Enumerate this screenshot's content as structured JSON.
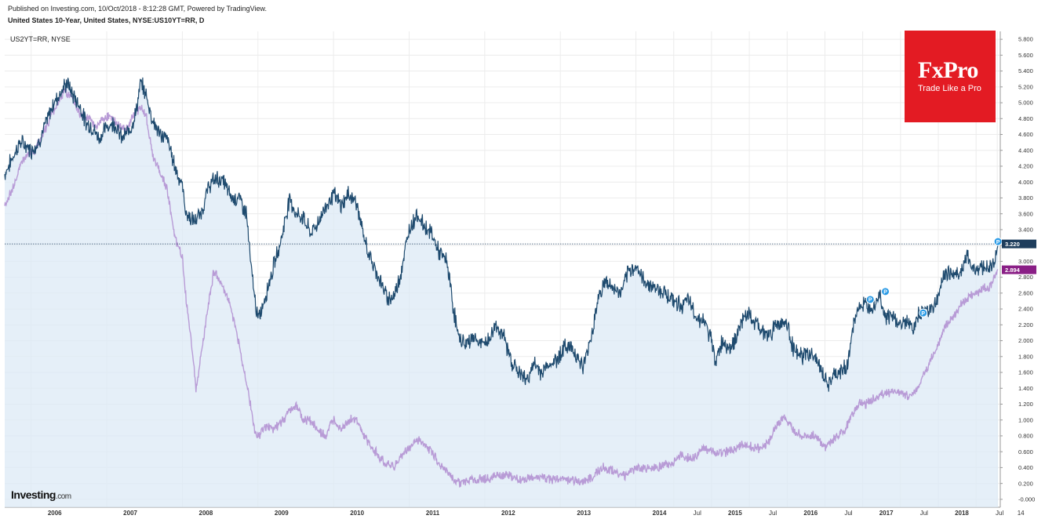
{
  "header": {
    "published": "Published on Investing.com, 10/Oct/2018 - 8:12:28 GMT, Powered by TradingView.",
    "title": "United States 10-Year, United States, NYSE:US10YT=RR, D",
    "compare_symbol": "US2YT=RR, NYSE"
  },
  "logo": {
    "brand": "Investing",
    "suffix": ".com"
  },
  "ad": {
    "brand": "FxPro",
    "tagline": "Trade Like a Pro"
  },
  "colors": {
    "us10": "#1e4a6e",
    "us2": "#b89bd6",
    "area_fill": "#dce9f6",
    "grid": "#ececec",
    "current_label_bg": "#1e3d5c",
    "us2_label_bg": "#8a1f86",
    "marker": "#2b9be6",
    "ad_bg": "#e31b23"
  },
  "chart_data": {
    "type": "line",
    "ylim": [
      -0.1,
      5.9
    ],
    "y_ticks": [
      5.8,
      5.6,
      5.4,
      5.2,
      5.0,
      4.8,
      4.6,
      4.4,
      4.2,
      4.0,
      3.8,
      3.6,
      3.4,
      3.2,
      3.0,
      2.8,
      2.6,
      2.4,
      2.2,
      2.0,
      1.8,
      1.6,
      1.4,
      1.2,
      1.0,
      0.8,
      0.6,
      0.4,
      0.2,
      0.0
    ],
    "x_ticks": [
      {
        "label": "2006",
        "t": 2006.0,
        "bold": true
      },
      {
        "label": "2007",
        "t": 2007.0,
        "bold": true
      },
      {
        "label": "2008",
        "t": 2008.0,
        "bold": true
      },
      {
        "label": "2009",
        "t": 2009.0,
        "bold": true
      },
      {
        "label": "2010",
        "t": 2010.0,
        "bold": true
      },
      {
        "label": "2011",
        "t": 2011.0,
        "bold": true
      },
      {
        "label": "2012",
        "t": 2012.0,
        "bold": true
      },
      {
        "label": "2013",
        "t": 2013.0,
        "bold": true
      },
      {
        "label": "2014",
        "t": 2014.0,
        "bold": true
      },
      {
        "label": "Jul",
        "t": 2014.5,
        "bold": false
      },
      {
        "label": "2015",
        "t": 2015.0,
        "bold": true
      },
      {
        "label": "Jul",
        "t": 2015.5,
        "bold": false
      },
      {
        "label": "2016",
        "t": 2016.0,
        "bold": true
      },
      {
        "label": "Jul",
        "t": 2016.5,
        "bold": false
      },
      {
        "label": "2017",
        "t": 2017.0,
        "bold": true
      },
      {
        "label": "Jul",
        "t": 2017.5,
        "bold": false
      },
      {
        "label": "2018",
        "t": 2018.0,
        "bold": true
      },
      {
        "label": "Jul",
        "t": 2018.5,
        "bold": false
      },
      {
        "label": "14",
        "t": 2018.78,
        "bold": false
      }
    ],
    "current_labels": [
      {
        "series": "US10YT=RR",
        "value": "3.220"
      },
      {
        "series": "US2YT=RR",
        "value": "2.894"
      }
    ],
    "series": [
      {
        "name": "US10YT=RR",
        "points": [
          [
            2005.65,
            4.1
          ],
          [
            2005.75,
            4.3
          ],
          [
            2005.85,
            4.5
          ],
          [
            2005.95,
            4.45
          ],
          [
            2006.0,
            4.4
          ],
          [
            2006.1,
            4.5
          ],
          [
            2006.2,
            4.75
          ],
          [
            2006.3,
            5.0
          ],
          [
            2006.4,
            5.15
          ],
          [
            2006.48,
            5.25
          ],
          [
            2006.55,
            5.1
          ],
          [
            2006.65,
            4.95
          ],
          [
            2006.72,
            4.75
          ],
          [
            2006.8,
            4.7
          ],
          [
            2006.9,
            4.55
          ],
          [
            2007.0,
            4.7
          ],
          [
            2007.1,
            4.75
          ],
          [
            2007.2,
            4.55
          ],
          [
            2007.3,
            4.65
          ],
          [
            2007.38,
            4.85
          ],
          [
            2007.45,
            5.25
          ],
          [
            2007.52,
            5.1
          ],
          [
            2007.6,
            4.8
          ],
          [
            2007.7,
            4.6
          ],
          [
            2007.8,
            4.55
          ],
          [
            2007.9,
            4.2
          ],
          [
            2008.0,
            3.95
          ],
          [
            2008.05,
            3.6
          ],
          [
            2008.15,
            3.5
          ],
          [
            2008.25,
            3.6
          ],
          [
            2008.35,
            3.95
          ],
          [
            2008.45,
            4.05
          ],
          [
            2008.55,
            4.0
          ],
          [
            2008.65,
            3.8
          ],
          [
            2008.75,
            3.8
          ],
          [
            2008.85,
            3.6
          ],
          [
            2008.9,
            3.0
          ],
          [
            2008.95,
            2.6
          ],
          [
            2009.0,
            2.25
          ],
          [
            2009.08,
            2.5
          ],
          [
            2009.18,
            2.85
          ],
          [
            2009.3,
            3.25
          ],
          [
            2009.42,
            3.8
          ],
          [
            2009.5,
            3.6
          ],
          [
            2009.6,
            3.55
          ],
          [
            2009.7,
            3.35
          ],
          [
            2009.8,
            3.5
          ],
          [
            2009.9,
            3.7
          ],
          [
            2010.0,
            3.85
          ],
          [
            2010.1,
            3.7
          ],
          [
            2010.2,
            3.85
          ],
          [
            2010.3,
            3.75
          ],
          [
            2010.4,
            3.3
          ],
          [
            2010.5,
            3.0
          ],
          [
            2010.6,
            2.8
          ],
          [
            2010.7,
            2.55
          ],
          [
            2010.8,
            2.55
          ],
          [
            2010.9,
            2.9
          ],
          [
            2011.0,
            3.4
          ],
          [
            2011.1,
            3.6
          ],
          [
            2011.2,
            3.45
          ],
          [
            2011.3,
            3.35
          ],
          [
            2011.4,
            3.1
          ],
          [
            2011.5,
            3.0
          ],
          [
            2011.58,
            2.45
          ],
          [
            2011.65,
            2.05
          ],
          [
            2011.75,
            1.95
          ],
          [
            2011.85,
            2.05
          ],
          [
            2011.95,
            1.95
          ],
          [
            2012.05,
            2.0
          ],
          [
            2012.15,
            2.2
          ],
          [
            2012.25,
            2.05
          ],
          [
            2012.35,
            1.75
          ],
          [
            2012.45,
            1.6
          ],
          [
            2012.55,
            1.5
          ],
          [
            2012.65,
            1.7
          ],
          [
            2012.75,
            1.6
          ],
          [
            2012.85,
            1.7
          ],
          [
            2012.95,
            1.75
          ],
          [
            2013.0,
            1.85
          ],
          [
            2013.1,
            1.95
          ],
          [
            2013.2,
            1.85
          ],
          [
            2013.3,
            1.65
          ],
          [
            2013.42,
            2.1
          ],
          [
            2013.5,
            2.55
          ],
          [
            2013.6,
            2.75
          ],
          [
            2013.7,
            2.65
          ],
          [
            2013.8,
            2.6
          ],
          [
            2013.9,
            2.85
          ],
          [
            2014.0,
            2.95
          ],
          [
            2014.1,
            2.75
          ],
          [
            2014.2,
            2.7
          ],
          [
            2014.3,
            2.65
          ],
          [
            2014.4,
            2.6
          ],
          [
            2014.5,
            2.5
          ],
          [
            2014.6,
            2.45
          ],
          [
            2014.7,
            2.5
          ],
          [
            2014.8,
            2.3
          ],
          [
            2014.9,
            2.25
          ],
          [
            2015.0,
            2.0
          ],
          [
            2015.05,
            1.75
          ],
          [
            2015.15,
            2.0
          ],
          [
            2015.25,
            1.9
          ],
          [
            2015.35,
            2.1
          ],
          [
            2015.45,
            2.35
          ],
          [
            2015.55,
            2.25
          ],
          [
            2015.65,
            2.15
          ],
          [
            2015.75,
            2.05
          ],
          [
            2015.85,
            2.2
          ],
          [
            2015.95,
            2.25
          ],
          [
            2016.0,
            2.2
          ],
          [
            2016.1,
            1.85
          ],
          [
            2016.2,
            1.8
          ],
          [
            2016.3,
            1.85
          ],
          [
            2016.4,
            1.75
          ],
          [
            2016.48,
            1.55
          ],
          [
            2016.55,
            1.45
          ],
          [
            2016.62,
            1.55
          ],
          [
            2016.7,
            1.6
          ],
          [
            2016.8,
            1.7
          ],
          [
            2016.88,
            2.2
          ],
          [
            2016.95,
            2.45
          ],
          [
            2017.05,
            2.45
          ],
          [
            2017.15,
            2.45
          ],
          [
            2017.22,
            2.6
          ],
          [
            2017.3,
            2.3
          ],
          [
            2017.4,
            2.3
          ],
          [
            2017.5,
            2.2
          ],
          [
            2017.58,
            2.25
          ],
          [
            2017.68,
            2.15
          ],
          [
            2017.75,
            2.35
          ],
          [
            2017.85,
            2.4
          ],
          [
            2017.95,
            2.45
          ],
          [
            2018.0,
            2.55
          ],
          [
            2018.08,
            2.85
          ],
          [
            2018.18,
            2.85
          ],
          [
            2018.28,
            2.85
          ],
          [
            2018.38,
            3.05
          ],
          [
            2018.48,
            2.9
          ],
          [
            2018.58,
            2.95
          ],
          [
            2018.68,
            2.9
          ],
          [
            2018.76,
            3.05
          ],
          [
            2018.79,
            3.22
          ]
        ]
      },
      {
        "name": "US2YT=RR",
        "points": [
          [
            2005.65,
            3.7
          ],
          [
            2005.75,
            3.9
          ],
          [
            2005.85,
            4.2
          ],
          [
            2005.95,
            4.35
          ],
          [
            2006.05,
            4.4
          ],
          [
            2006.15,
            4.6
          ],
          [
            2006.25,
            4.8
          ],
          [
            2006.35,
            5.0
          ],
          [
            2006.45,
            5.15
          ],
          [
            2006.55,
            5.05
          ],
          [
            2006.65,
            4.85
          ],
          [
            2006.75,
            4.8
          ],
          [
            2006.85,
            4.7
          ],
          [
            2006.95,
            4.8
          ],
          [
            2007.05,
            4.85
          ],
          [
            2007.15,
            4.7
          ],
          [
            2007.25,
            4.65
          ],
          [
            2007.35,
            4.85
          ],
          [
            2007.45,
            4.95
          ],
          [
            2007.52,
            4.85
          ],
          [
            2007.6,
            4.35
          ],
          [
            2007.7,
            4.15
          ],
          [
            2007.8,
            3.9
          ],
          [
            2007.9,
            3.3
          ],
          [
            2008.0,
            3.05
          ],
          [
            2008.05,
            2.5
          ],
          [
            2008.12,
            2.0
          ],
          [
            2008.18,
            1.4
          ],
          [
            2008.25,
            1.85
          ],
          [
            2008.32,
            2.3
          ],
          [
            2008.42,
            2.9
          ],
          [
            2008.52,
            2.7
          ],
          [
            2008.62,
            2.5
          ],
          [
            2008.72,
            2.1
          ],
          [
            2008.82,
            1.6
          ],
          [
            2008.9,
            1.2
          ],
          [
            2008.95,
            0.9
          ],
          [
            2009.0,
            0.8
          ],
          [
            2009.1,
            0.9
          ],
          [
            2009.2,
            0.9
          ],
          [
            2009.3,
            0.95
          ],
          [
            2009.4,
            1.1
          ],
          [
            2009.5,
            1.2
          ],
          [
            2009.6,
            1.0
          ],
          [
            2009.7,
            1.0
          ],
          [
            2009.8,
            0.85
          ],
          [
            2009.9,
            0.8
          ],
          [
            2010.0,
            1.0
          ],
          [
            2010.1,
            0.9
          ],
          [
            2010.2,
            1.0
          ],
          [
            2010.3,
            1.0
          ],
          [
            2010.4,
            0.8
          ],
          [
            2010.5,
            0.65
          ],
          [
            2010.6,
            0.55
          ],
          [
            2010.7,
            0.45
          ],
          [
            2010.8,
            0.4
          ],
          [
            2010.9,
            0.55
          ],
          [
            2011.0,
            0.65
          ],
          [
            2011.1,
            0.75
          ],
          [
            2011.2,
            0.7
          ],
          [
            2011.3,
            0.6
          ],
          [
            2011.4,
            0.45
          ],
          [
            2011.5,
            0.35
          ],
          [
            2011.6,
            0.25
          ],
          [
            2011.7,
            0.2
          ],
          [
            2011.8,
            0.25
          ],
          [
            2011.9,
            0.25
          ],
          [
            2012.0,
            0.25
          ],
          [
            2012.15,
            0.3
          ],
          [
            2012.3,
            0.3
          ],
          [
            2012.45,
            0.25
          ],
          [
            2012.6,
            0.25
          ],
          [
            2012.75,
            0.28
          ],
          [
            2012.9,
            0.25
          ],
          [
            2013.0,
            0.25
          ],
          [
            2013.15,
            0.25
          ],
          [
            2013.3,
            0.22
          ],
          [
            2013.45,
            0.3
          ],
          [
            2013.55,
            0.4
          ],
          [
            2013.7,
            0.35
          ],
          [
            2013.85,
            0.3
          ],
          [
            2014.0,
            0.38
          ],
          [
            2014.15,
            0.4
          ],
          [
            2014.3,
            0.4
          ],
          [
            2014.45,
            0.45
          ],
          [
            2014.6,
            0.55
          ],
          [
            2014.75,
            0.5
          ],
          [
            2014.9,
            0.65
          ],
          [
            2015.0,
            0.6
          ],
          [
            2015.1,
            0.6
          ],
          [
            2015.25,
            0.6
          ],
          [
            2015.4,
            0.7
          ],
          [
            2015.55,
            0.65
          ],
          [
            2015.7,
            0.65
          ],
          [
            2015.85,
            0.9
          ],
          [
            2015.95,
            1.05
          ],
          [
            2016.05,
            0.9
          ],
          [
            2016.2,
            0.8
          ],
          [
            2016.35,
            0.8
          ],
          [
            2016.5,
            0.65
          ],
          [
            2016.6,
            0.75
          ],
          [
            2016.75,
            0.85
          ],
          [
            2016.85,
            1.05
          ],
          [
            2016.95,
            1.2
          ],
          [
            2017.05,
            1.2
          ],
          [
            2017.2,
            1.3
          ],
          [
            2017.35,
            1.35
          ],
          [
            2017.5,
            1.35
          ],
          [
            2017.6,
            1.3
          ],
          [
            2017.7,
            1.35
          ],
          [
            2017.8,
            1.55
          ],
          [
            2017.9,
            1.75
          ],
          [
            2018.0,
            1.95
          ],
          [
            2018.1,
            2.2
          ],
          [
            2018.2,
            2.3
          ],
          [
            2018.3,
            2.45
          ],
          [
            2018.4,
            2.55
          ],
          [
            2018.5,
            2.6
          ],
          [
            2018.6,
            2.65
          ],
          [
            2018.7,
            2.7
          ],
          [
            2018.79,
            2.894
          ]
        ]
      }
    ],
    "markers": [
      {
        "t": 2017.1,
        "value": 2.52,
        "label": "P"
      },
      {
        "t": 2017.3,
        "value": 2.62,
        "label": "P"
      },
      {
        "t": 2017.8,
        "value": 2.35,
        "label": "P"
      },
      {
        "t": 2018.79,
        "value": 3.25,
        "label": "P"
      }
    ]
  }
}
